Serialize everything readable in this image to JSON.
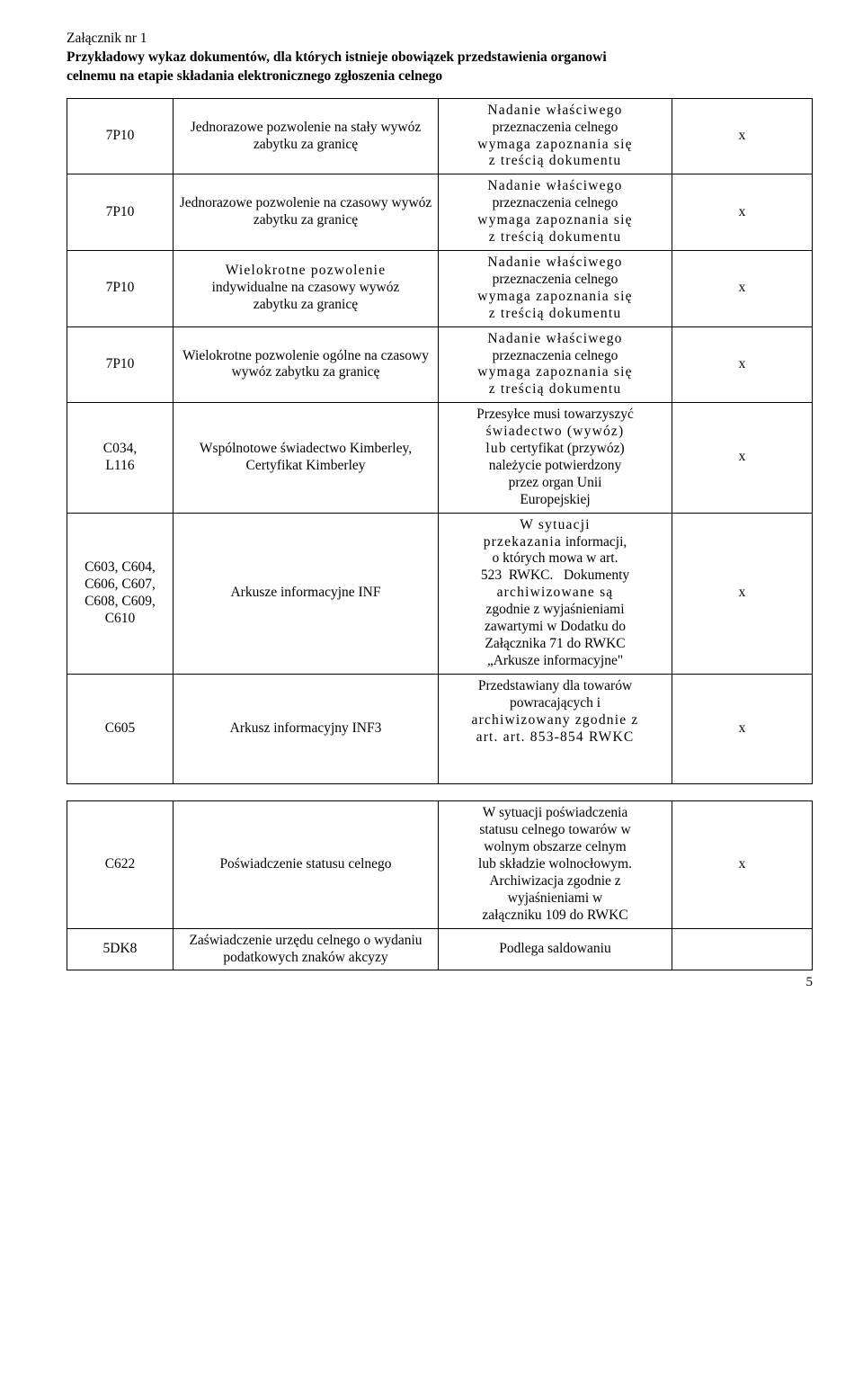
{
  "header": {
    "attachment": "Załącznik nr 1",
    "title_l1": "Przykładowy wykaz dokumentów, dla których istnieje obowiązek przedstawienia organowi",
    "title_l2": "celnemu na etapie składania elektronicznego zgłoszenia celnego"
  },
  "rows": [
    {
      "code": "7P10",
      "desc": "Jednorazowe pozwolenie na stały wywóz zabytku za granicę",
      "req_html": "<span class='stretch'>Nadanie właściwego</span><br>przeznaczenia celnego<br><span class='stretch'>wymaga zapoznania się</span><br><span class='stretch'>z treścią dokumentu</span>",
      "x": "x"
    },
    {
      "code": "7P10",
      "desc": "Jednorazowe pozwolenie na czasowy wywóz zabytku za granicę",
      "req_html": "<span class='stretch'>Nadanie właściwego</span><br>przeznaczenia celnego<br><span class='stretch'>wymaga zapoznania się</span><br><span class='stretch'>z treścią dokumentu</span>",
      "x": "x"
    },
    {
      "code": "7P10",
      "desc": "<span class='stretch'>Wielokrotne pozwolenie</span><br>indywidualne na czasowy wywóz<br>zabytku za granicę",
      "req_html": "<span class='stretch'>Nadanie właściwego</span><br>przeznaczenia celnego<br><span class='stretch'>wymaga zapoznania się</span><br><span class='stretch'>z treścią dokumentu</span>",
      "x": "x"
    },
    {
      "code": "7P10",
      "desc": "Wielokrotne pozwolenie ogólne na czasowy wywóz zabytku za granicę",
      "req_html": "<span class='stretch'>Nadanie właściwego</span><br>przeznaczenia celnego<br><span class='stretch'>wymaga zapoznania się</span><br><span class='stretch'>z treścią dokumentu</span>",
      "x": "x"
    },
    {
      "code": "C034,<br>L116",
      "desc": "Wspólnotowe świadectwo Kimberley, Certyfikat Kimberley",
      "req_html": "Przesyłce musi towarzyszyć<br><span class='stretch'>świadectwo (wywóz)</span><br><span class='stretch'>lub</span> certyfikat (przywóz)<br>należycie potwierdzony<br>przez organ Unii<br>Europejskiej",
      "x": "x"
    },
    {
      "code": "C603, C604,<br>C606, C607,<br>C608, C609,<br>C610",
      "desc": "Arkusze informacyjne INF",
      "req_html": "<span class='stretch'>W sytuacji</span><br><span class='stretch'>przekazania</span> informacji,<br>o których mowa w art.<br>523&nbsp;&nbsp;RWKC.&nbsp;&nbsp;&nbsp;Dokumenty<br><span class='stretch'>archiwizowane są</span><br>zgodnie z wyjaśnieniami<br>zawartymi w Dodatku do<br>Załącznika 71 do RWKC<br>„Arkusze informacyjne&quot;",
      "x": "x"
    },
    {
      "code": "C605",
      "desc": "Arkusz informacyjny INF3",
      "req_html": "Przedstawiany dla towarów<br>powracających i<br><span class='stretch'>archiwizowany zgodnie z</span><br><span class='stretch'>art. art. 853-854 RWKC</span><br>&nbsp;<br>&nbsp;",
      "x": "x"
    }
  ],
  "rows2": [
    {
      "code": "C622",
      "desc": "Poświadczenie statusu celnego",
      "req_html": "W sytuacji poświadczenia<br>statusu celnego towarów w<br>wolnym obszarze celnym<br>lub składzie wolnocłowym.<br>Archiwizacja zgodnie z<br>wyjaśnieniami w<br>załączniku 109 do RWKC",
      "x": "x"
    },
    {
      "code": "5DK8",
      "desc": "Zaświadczenie urzędu celnego o wydaniu podatkowych znaków akcyzy",
      "req_html": "Podlega saldowaniu",
      "x": ""
    }
  ],
  "page": "5"
}
